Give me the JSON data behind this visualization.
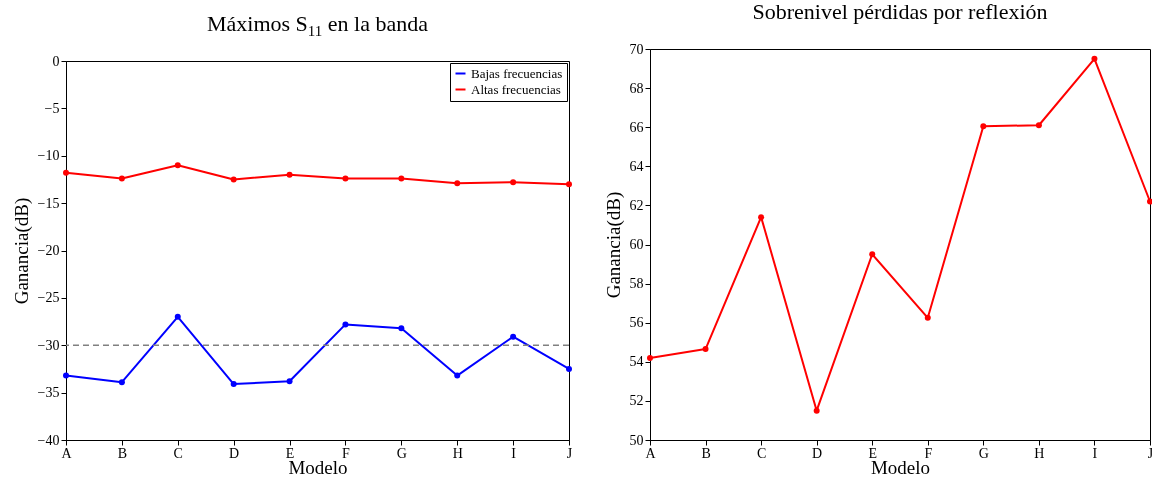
{
  "chart_data": [
    {
      "type": "line",
      "title": "Máximos S$_{11}$ en la banda",
      "xlabel": "Modelo",
      "ylabel": "Ganancia(dB)",
      "categories": [
        "A",
        "B",
        "C",
        "D",
        "E",
        "F",
        "G",
        "H",
        "I",
        "J"
      ],
      "series": [
        {
          "name": "Bajas frecuencias",
          "color": "#0000ff",
          "values": [
            -33.2,
            -33.9,
            -27.0,
            -34.1,
            -33.8,
            -27.8,
            -28.2,
            -33.2,
            -29.1,
            -32.5
          ]
        },
        {
          "name": "Altas frecuencias",
          "color": "#ff0000",
          "values": [
            -11.8,
            -12.4,
            -11.0,
            -12.5,
            -12.0,
            -12.4,
            -12.4,
            -12.9,
            -12.8,
            -13.0
          ]
        }
      ],
      "ylim": [
        -40,
        0
      ],
      "yticks": [
        -40,
        -35,
        -30,
        -25,
        -20,
        -15,
        -10,
        -5,
        0
      ],
      "ref_lines": [
        {
          "axis": "y",
          "value": -30,
          "color": "#808080",
          "line_style": "dashed"
        }
      ],
      "legend": "top right",
      "marker": "circle",
      "line_style": "solid",
      "grid": false
    },
    {
      "type": "line",
      "title": "Sobrenivel pérdidas por reflexión",
      "xlabel": "Modelo",
      "ylabel": "Ganancia(dB)",
      "categories": [
        "A",
        "B",
        "C",
        "D",
        "E",
        "F",
        "G",
        "H",
        "I",
        "J"
      ],
      "series": [
        {
          "color": "#ff0000",
          "values": [
            54.2,
            54.65,
            61.4,
            51.5,
            59.5,
            56.25,
            66.05,
            66.1,
            69.5,
            62.2
          ]
        }
      ],
      "ylim": [
        50,
        70
      ],
      "yticks": [
        50,
        52,
        54,
        56,
        58,
        60,
        62,
        64,
        66,
        68,
        70
      ],
      "marker": "circle",
      "line_style": "solid",
      "grid": false
    }
  ]
}
